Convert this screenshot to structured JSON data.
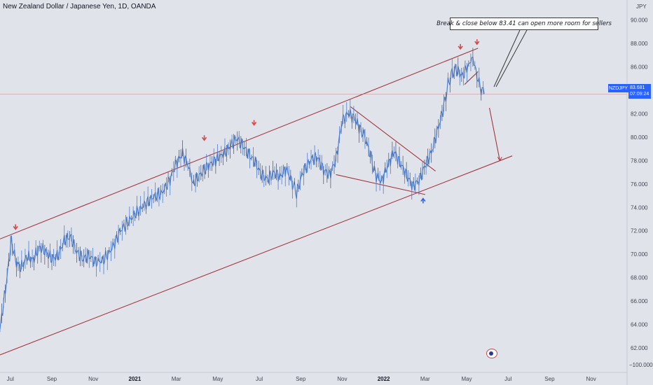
{
  "header": {
    "title": "New Zealand Dollar / Japanese Yen, 1D, OANDA"
  },
  "annotation": {
    "text": "Break & close below 83.41 can open more room for sellers"
  },
  "price_axis": {
    "unit": "JPY",
    "last_symbol": "NZDJPY",
    "last_price": "83.681",
    "countdown": "07:09:24",
    "bottom_label": "−100.000"
  },
  "colors": {
    "background": "#e1e3eb",
    "channel_line": "#a4373c",
    "candle": "#4a7fd6",
    "arrow_red": "#d34b4b",
    "arrow_blue": "#2962ff",
    "price_badge": "#2962ff"
  },
  "chart_data": {
    "type": "line",
    "title": "New Zealand Dollar / Japanese Yen, 1D, OANDA",
    "xlabel": "",
    "ylabel": "JPY",
    "ylim": [
      60.5,
      91
    ],
    "grid": false,
    "x_ticks": [
      {
        "t": 0.5,
        "label": "Jul",
        "bold": false
      },
      {
        "t": 2.5,
        "label": "Sep",
        "bold": false
      },
      {
        "t": 4.5,
        "label": "Nov",
        "bold": false
      },
      {
        "t": 6.5,
        "label": "2021",
        "bold": true
      },
      {
        "t": 8.5,
        "label": "Mar",
        "bold": false
      },
      {
        "t": 10.5,
        "label": "May",
        "bold": false
      },
      {
        "t": 12.5,
        "label": "Jul",
        "bold": false
      },
      {
        "t": 14.5,
        "label": "Sep",
        "bold": false
      },
      {
        "t": 16.5,
        "label": "Nov",
        "bold": false
      },
      {
        "t": 18.5,
        "label": "2022",
        "bold": true
      },
      {
        "t": 20.5,
        "label": "Mar",
        "bold": false
      },
      {
        "t": 22.5,
        "label": "May",
        "bold": false
      },
      {
        "t": 24.5,
        "label": "Jul",
        "bold": false
      },
      {
        "t": 26.5,
        "label": "Sep",
        "bold": false
      },
      {
        "t": 28.5,
        "label": "Nov",
        "bold": false
      }
    ],
    "y_ticks": [
      62,
      64,
      66,
      68,
      70,
      72,
      74,
      76,
      78,
      80,
      82,
      84,
      86,
      88,
      90
    ],
    "y_tick_labels": [
      "62.000",
      "64.000",
      "66.000",
      "68.000",
      "70.000",
      "72.000",
      "74.000",
      "76.000",
      "78.000",
      "80.000",
      "82.000",
      "84.000",
      "86.000",
      "88.000",
      "90.000"
    ],
    "series": [
      {
        "values": [
          [
            0.0,
            63.6
          ],
          [
            0.3,
            67.5
          ],
          [
            0.55,
            71.2
          ],
          [
            0.75,
            69.4
          ],
          [
            1.0,
            68.8
          ],
          [
            1.3,
            69.8
          ],
          [
            1.6,
            69.5
          ],
          [
            1.9,
            70.6
          ],
          [
            2.2,
            70.2
          ],
          [
            2.5,
            69.6
          ],
          [
            2.8,
            69.9
          ],
          [
            3.1,
            71.2
          ],
          [
            3.4,
            71.5
          ],
          [
            3.7,
            70.2
          ],
          [
            4.0,
            69.6
          ],
          [
            4.3,
            69.9
          ],
          [
            4.6,
            69.3
          ],
          [
            5.0,
            69.5
          ],
          [
            5.4,
            70.5
          ],
          [
            5.8,
            72.0
          ],
          [
            6.2,
            72.8
          ],
          [
            6.6,
            73.6
          ],
          [
            7.0,
            74.3
          ],
          [
            7.4,
            74.9
          ],
          [
            7.8,
            75.2
          ],
          [
            8.2,
            76.4
          ],
          [
            8.5,
            77.8
          ],
          [
            8.8,
            78.6
          ],
          [
            9.1,
            77.5
          ],
          [
            9.3,
            76.0
          ],
          [
            9.6,
            76.7
          ],
          [
            10.0,
            77.5
          ],
          [
            10.4,
            78.1
          ],
          [
            10.8,
            78.6
          ],
          [
            11.1,
            79.2
          ],
          [
            11.4,
            79.9
          ],
          [
            11.7,
            79.3
          ],
          [
            12.0,
            78.5
          ],
          [
            12.3,
            77.9
          ],
          [
            12.6,
            76.8
          ],
          [
            12.9,
            76.4
          ],
          [
            13.2,
            77.0
          ],
          [
            13.5,
            76.6
          ],
          [
            13.8,
            77.3
          ],
          [
            14.1,
            76.1
          ],
          [
            14.3,
            75.2
          ],
          [
            14.6,
            77.0
          ],
          [
            15.0,
            78.1
          ],
          [
            15.3,
            78.3
          ],
          [
            15.6,
            77.2
          ],
          [
            15.9,
            76.8
          ],
          [
            16.2,
            78.1
          ],
          [
            16.5,
            81.4
          ],
          [
            16.8,
            82.1
          ],
          [
            17.1,
            81.6
          ],
          [
            17.4,
            80.6
          ],
          [
            17.6,
            80.0
          ],
          [
            17.9,
            78.2
          ],
          [
            18.1,
            76.8
          ],
          [
            18.4,
            76.2
          ],
          [
            18.7,
            77.6
          ],
          [
            19.0,
            78.8
          ],
          [
            19.3,
            77.8
          ],
          [
            19.6,
            76.8
          ],
          [
            19.9,
            75.8
          ],
          [
            20.2,
            76.3
          ],
          [
            20.5,
            77.6
          ],
          [
            20.8,
            78.7
          ],
          [
            21.1,
            80.6
          ],
          [
            21.4,
            82.6
          ],
          [
            21.6,
            84.5
          ],
          [
            21.8,
            85.5
          ],
          [
            22.0,
            85.8
          ],
          [
            22.3,
            85.2
          ],
          [
            22.6,
            86.2
          ],
          [
            22.8,
            86.8
          ],
          [
            23.0,
            85.2
          ],
          [
            23.2,
            84.1
          ],
          [
            23.35,
            83.68
          ]
        ]
      }
    ],
    "lines": [
      {
        "name": "upper-channel-line",
        "from": [
          0.0,
          71.3
        ],
        "to": [
          23.05,
          87.6
        ]
      },
      {
        "name": "lower-channel-line",
        "from": [
          0.0,
          61.4
        ],
        "to": [
          24.7,
          78.4
        ]
      },
      {
        "name": "wedge-upper-line",
        "from": [
          16.9,
          82.6
        ],
        "to": [
          21.0,
          77.1
        ]
      },
      {
        "name": "wedge-lower-line",
        "from": [
          16.2,
          76.8
        ],
        "to": [
          20.5,
          75.1
        ]
      },
      {
        "name": "flag-line-1",
        "from": [
          22.4,
          84.5
        ],
        "to": [
          23.05,
          85.6
        ]
      },
      {
        "name": "forecast-line",
        "from": [
          23.6,
          82.5
        ],
        "to": [
          24.1,
          78.0
        ]
      }
    ],
    "markers": [
      {
        "name": "red-down-arrow-1",
        "x": 0.75,
        "y": 72.2,
        "dir": "down",
        "color": "red"
      },
      {
        "name": "red-down-arrow-2",
        "x": 9.85,
        "y": 79.8,
        "dir": "down",
        "color": "red"
      },
      {
        "name": "red-down-arrow-3",
        "x": 12.25,
        "y": 81.1,
        "dir": "down",
        "color": "red"
      },
      {
        "name": "red-down-arrow-4",
        "x": 22.2,
        "y": 87.6,
        "dir": "down",
        "color": "red"
      },
      {
        "name": "red-down-arrow-5",
        "x": 23.0,
        "y": 88.0,
        "dir": "down",
        "color": "red"
      },
      {
        "name": "blue-up-arrow",
        "x": 20.4,
        "y": 74.7,
        "dir": "up",
        "color": "blue"
      }
    ],
    "current_price": 83.681
  }
}
